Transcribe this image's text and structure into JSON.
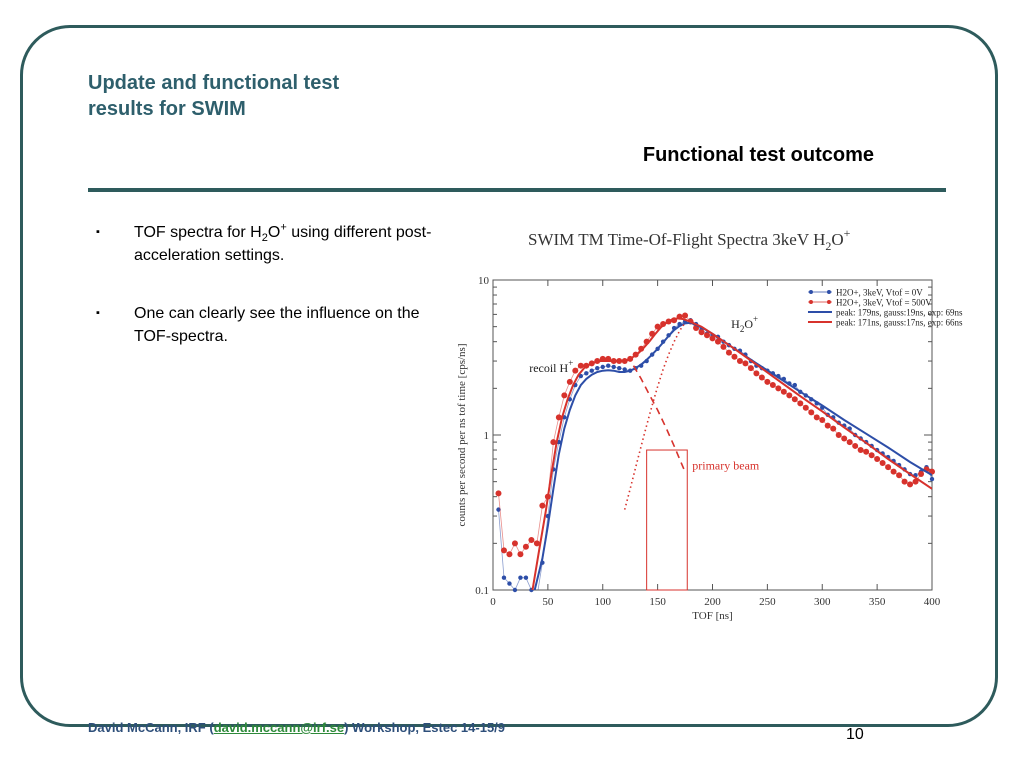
{
  "slide": {
    "title": "Update and functional test\nresults for SWIM",
    "subtitle": "Functional test outcome",
    "bullet1_a": "TOF spectra for H",
    "bullet1_sub": "2",
    "bullet1_b": "O",
    "bullet1_sup": "+",
    "bullet1_c": " using different post-acceleration settings.",
    "bullet2": "One can clearly see the influence on the TOF-spectra.",
    "bullet_marker": "▪",
    "footer_prefix": "David McCann, IRF (",
    "footer_email": "david.mccann@irf.se",
    "footer_suffix": ") Workshop, Estec 14-15/9",
    "page_number": "10",
    "colors": {
      "accent": "#2e5b5c",
      "title": "#2e5f6c",
      "blue_series": "#2d4ea8",
      "red_series": "#d7322c"
    }
  },
  "chart_data": {
    "type": "scatter",
    "title": "SWIM TM Time-Of-Flight Spectra 3keV H",
    "title_sub": "2",
    "title_end": "O",
    "title_sup": "+",
    "xlabel": "TOF [ns]",
    "ylabel": "counts per second per ns tof time [cps/ns]",
    "xlim": [
      0,
      400
    ],
    "ylim": [
      0.1,
      10
    ],
    "yscale": "log",
    "grid": false,
    "legend_placement": "top-right",
    "x_ticks": [
      0,
      50,
      100,
      150,
      200,
      250,
      300,
      350,
      400
    ],
    "y_ticks": [
      0.1,
      1,
      10
    ],
    "y_tick_labels": [
      "0.1",
      "1",
      "10"
    ],
    "annotations": {
      "recoil": "recoil H",
      "recoil_sup": "+",
      "h2o": "H",
      "h2o_sub": "2",
      "h2o_end": "O",
      "h2o_sup": "+",
      "primary": "primary beam"
    },
    "series": [
      {
        "name": "H2O+, 3keV, Vtof = 0V",
        "kind": "points",
        "color": "#2d4ea8",
        "x": [
          5,
          10,
          15,
          20,
          25,
          30,
          35,
          40,
          45,
          50,
          55,
          60,
          65,
          70,
          75,
          80,
          85,
          90,
          95,
          100,
          105,
          110,
          115,
          120,
          125,
          130,
          135,
          140,
          145,
          150,
          155,
          160,
          165,
          170,
          175,
          180,
          185,
          190,
          195,
          200,
          205,
          210,
          215,
          220,
          225,
          230,
          235,
          240,
          245,
          250,
          255,
          260,
          265,
          270,
          275,
          280,
          285,
          290,
          295,
          300,
          305,
          310,
          315,
          320,
          325,
          330,
          335,
          340,
          345,
          350,
          355,
          360,
          365,
          370,
          375,
          380,
          385,
          390,
          395,
          400
        ],
        "y": [
          0.33,
          0.12,
          0.11,
          0.1,
          0.12,
          0.12,
          0.1,
          0.09,
          0.15,
          0.3,
          0.6,
          0.9,
          1.3,
          1.7,
          2.1,
          2.4,
          2.5,
          2.6,
          2.7,
          2.75,
          2.8,
          2.75,
          2.7,
          2.65,
          2.6,
          2.7,
          2.8,
          3.0,
          3.3,
          3.6,
          4.0,
          4.4,
          4.9,
          5.2,
          5.4,
          5.5,
          5.2,
          4.8,
          4.5,
          4.4,
          4.3,
          4.0,
          3.8,
          3.6,
          3.5,
          3.3,
          3.0,
          2.8,
          2.7,
          2.6,
          2.5,
          2.4,
          2.3,
          2.15,
          2.1,
          1.9,
          1.8,
          1.7,
          1.6,
          1.5,
          1.35,
          1.3,
          1.2,
          1.15,
          1.1,
          1.0,
          0.95,
          0.9,
          0.85,
          0.8,
          0.76,
          0.72,
          0.68,
          0.64,
          0.6,
          0.56,
          0.55,
          0.58,
          0.62,
          0.52
        ]
      },
      {
        "name": "H2O+, 3keV, Vtof = 500V",
        "kind": "points",
        "color": "#d7322c",
        "x": [
          5,
          10,
          15,
          20,
          25,
          30,
          35,
          40,
          45,
          50,
          55,
          60,
          65,
          70,
          75,
          80,
          85,
          90,
          95,
          100,
          105,
          110,
          115,
          120,
          125,
          130,
          135,
          140,
          145,
          150,
          155,
          160,
          165,
          170,
          175,
          180,
          185,
          190,
          195,
          200,
          205,
          210,
          215,
          220,
          225,
          230,
          235,
          240,
          245,
          250,
          255,
          260,
          265,
          270,
          275,
          280,
          285,
          290,
          295,
          300,
          305,
          310,
          315,
          320,
          325,
          330,
          335,
          340,
          345,
          350,
          355,
          360,
          365,
          370,
          375,
          380,
          385,
          390,
          395,
          400
        ],
        "y": [
          0.42,
          0.18,
          0.17,
          0.2,
          0.17,
          0.19,
          0.21,
          0.2,
          0.35,
          0.4,
          0.9,
          1.3,
          1.8,
          2.2,
          2.6,
          2.8,
          2.8,
          2.9,
          3.0,
          3.1,
          3.1,
          3.0,
          3.0,
          3.0,
          3.1,
          3.3,
          3.6,
          4.0,
          4.5,
          5.0,
          5.2,
          5.4,
          5.5,
          5.8,
          5.9,
          5.4,
          4.9,
          4.6,
          4.4,
          4.2,
          4.0,
          3.7,
          3.4,
          3.2,
          3.0,
          2.9,
          2.7,
          2.5,
          2.35,
          2.2,
          2.1,
          2.0,
          1.9,
          1.8,
          1.7,
          1.6,
          1.5,
          1.4,
          1.3,
          1.25,
          1.15,
          1.1,
          1.0,
          0.95,
          0.9,
          0.85,
          0.8,
          0.78,
          0.74,
          0.7,
          0.66,
          0.62,
          0.58,
          0.55,
          0.5,
          0.48,
          0.5,
          0.56,
          0.6,
          0.58
        ]
      },
      {
        "name": "peak: 179ns, gauss:19ns, exp: 69ns",
        "kind": "line",
        "color": "#2d4ea8",
        "x": [
          38,
          45,
          50,
          55,
          60,
          65,
          70,
          75,
          80,
          85,
          90,
          95,
          100,
          105,
          110,
          115,
          120,
          125,
          130,
          135,
          140,
          145,
          150,
          155,
          160,
          165,
          170,
          175,
          180,
          190,
          200,
          220,
          240,
          260,
          280,
          300,
          320,
          340,
          360,
          380,
          400
        ],
        "y": [
          0.1,
          0.16,
          0.26,
          0.45,
          0.75,
          1.1,
          1.45,
          1.8,
          2.1,
          2.3,
          2.45,
          2.55,
          2.6,
          2.62,
          2.6,
          2.55,
          2.55,
          2.6,
          2.7,
          2.85,
          3.05,
          3.3,
          3.6,
          3.95,
          4.35,
          4.75,
          5.05,
          5.25,
          5.3,
          4.95,
          4.5,
          3.6,
          2.9,
          2.35,
          1.9,
          1.55,
          1.25,
          1.02,
          0.83,
          0.67,
          0.55
        ]
      },
      {
        "name": "peak: 171ns, gauss:17ns, exp: 66ns",
        "kind": "line",
        "color": "#d7322c",
        "x": [
          36,
          42,
          48,
          53,
          58,
          63,
          68,
          73,
          78,
          83,
          88,
          93,
          98,
          103,
          108,
          113,
          118,
          123,
          128,
          133,
          138,
          143,
          148,
          153,
          158,
          163,
          168,
          173,
          178,
          190,
          200,
          220,
          240,
          260,
          280,
          300,
          320,
          340,
          360,
          380,
          400
        ],
        "y": [
          0.1,
          0.18,
          0.32,
          0.55,
          0.9,
          1.3,
          1.7,
          2.1,
          2.45,
          2.7,
          2.85,
          2.95,
          3.0,
          3.0,
          3.0,
          2.98,
          3.0,
          3.05,
          3.2,
          3.4,
          3.7,
          4.05,
          4.5,
          4.95,
          5.3,
          5.55,
          5.65,
          5.6,
          5.45,
          5.0,
          4.5,
          3.6,
          2.85,
          2.25,
          1.78,
          1.42,
          1.12,
          0.89,
          0.7,
          0.56,
          0.45
        ]
      },
      {
        "name": "recoil H+ component",
        "kind": "dashed",
        "color": "#d7322c",
        "x": [
          128,
          135,
          142,
          150,
          158,
          165,
          170,
          174
        ],
        "y": [
          2.8,
          2.3,
          1.85,
          1.45,
          1.1,
          0.85,
          0.7,
          0.6
        ]
      },
      {
        "name": "primary beam component",
        "kind": "dotted",
        "color": "#d7322c",
        "x": [
          120,
          125,
          130,
          135,
          140,
          145,
          150,
          155,
          160,
          165,
          170,
          175
        ],
        "y": [
          0.33,
          0.45,
          0.62,
          0.85,
          1.15,
          1.55,
          2.05,
          2.65,
          3.3,
          4.0,
          4.7,
          5.3
        ]
      }
    ]
  }
}
